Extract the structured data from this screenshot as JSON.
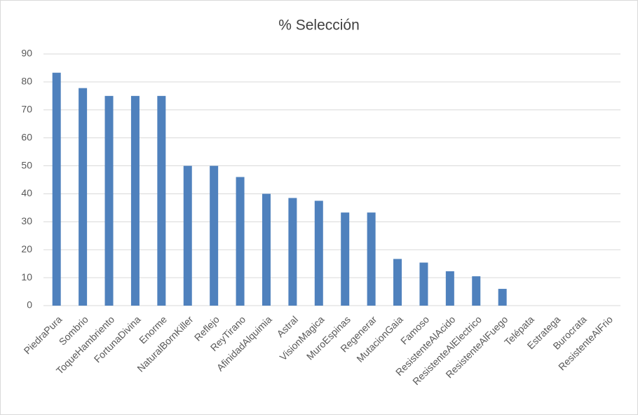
{
  "chart_data": {
    "type": "bar",
    "title": "% Selección",
    "categories": [
      "PiedraPura",
      "Sombrio",
      "ToqueHambriento",
      "FortunaDivina",
      "Enorme",
      "NaturalBornKiller",
      "Reflejo",
      "ReyTirano",
      "AfinidadAlquimia",
      "Astral",
      "VisionMagica",
      "MuroEspinas",
      "Regenerar",
      "MutacionGaia",
      "Famoso",
      "ResistenteAlAcido",
      "ResistenteAlElectrico",
      "ResistenteAlFuego",
      "Telépata",
      "Estratega",
      "Burocrata",
      "ResistenteAlFrio"
    ],
    "values": [
      83.3,
      77.8,
      75,
      75,
      75,
      50,
      50,
      46,
      40,
      38.5,
      37.5,
      33.3,
      33.3,
      16.7,
      15.4,
      12.3,
      10.5,
      6,
      0,
      0,
      0,
      0
    ],
    "color": "#4f81bd",
    "ylim": [
      0,
      90
    ],
    "yticks": [
      0,
      10,
      20,
      30,
      40,
      50,
      60,
      70,
      80,
      90
    ],
    "grid": true
  }
}
